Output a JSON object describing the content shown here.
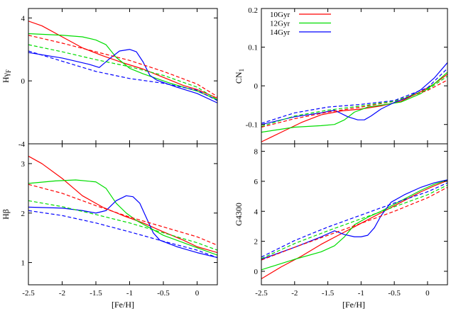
{
  "figure": {
    "shared_xlabel": "[Fe/H]"
  },
  "legend": {
    "entries": [
      {
        "label": "10Gyr",
        "color": "#ff0000"
      },
      {
        "label": "12Gyr",
        "color": "#00dd00"
      },
      {
        "label": "14Gyr",
        "color": "#0000ff"
      }
    ],
    "placement": "top-left of CN1 panel"
  },
  "chart_data": [
    {
      "id": "hgf",
      "type": "line",
      "ylabel": "Hγ_F",
      "xlim": [
        -2.5,
        0.3
      ],
      "ylim": [
        -4,
        4.6
      ],
      "xticks": [
        -2.5,
        -2,
        -1.5,
        -1,
        -0.5,
        0
      ],
      "yticks": [
        -4,
        0,
        4
      ],
      "xticklabels_shown": false,
      "series": [
        {
          "label": "10Gyr",
          "style": "solid",
          "color": "#ff0000",
          "x": [
            -2.5,
            -2.3,
            -2.0,
            -1.7,
            -1.4,
            -1.1,
            -0.8,
            -0.6,
            -0.4,
            -0.2,
            0,
            0.3
          ],
          "y": [
            3.8,
            3.5,
            2.8,
            2.1,
            1.6,
            1.15,
            0.75,
            0.4,
            0.05,
            -0.3,
            -0.55,
            -1.1
          ]
        },
        {
          "label": "12Gyr",
          "style": "solid",
          "color": "#00dd00",
          "x": [
            -2.5,
            -2.0,
            -1.7,
            -1.5,
            -1.35,
            -1.2,
            -1.0,
            -0.8,
            -0.6,
            -0.4,
            -0.2,
            0,
            0.3
          ],
          "y": [
            3.0,
            2.9,
            2.8,
            2.6,
            2.3,
            1.5,
            0.8,
            0.45,
            0.15,
            -0.15,
            -0.4,
            -0.65,
            -1.2
          ]
        },
        {
          "label": "14Gyr",
          "style": "solid",
          "color": "#0000ff",
          "x": [
            -2.5,
            -2.0,
            -1.6,
            -1.45,
            -1.3,
            -1.15,
            -1.0,
            -0.9,
            -0.8,
            -0.7,
            -0.6,
            -0.5,
            -0.3,
            0,
            0.3
          ],
          "y": [
            1.8,
            1.45,
            1.05,
            0.85,
            1.4,
            1.9,
            2.0,
            1.85,
            1.2,
            0.35,
            0.05,
            -0.1,
            -0.4,
            -0.8,
            -1.4
          ]
        },
        {
          "label": "10Gyr",
          "style": "dashed",
          "color": "#ff0000",
          "x": [
            -2.5,
            -2.0,
            -1.5,
            -1.0,
            -0.5,
            0,
            0.3
          ],
          "y": [
            2.9,
            2.4,
            1.85,
            1.3,
            0.6,
            -0.2,
            -1.0
          ]
        },
        {
          "label": "12Gyr",
          "style": "dashed",
          "color": "#00dd00",
          "x": [
            -2.5,
            -2.0,
            -1.5,
            -1.0,
            -0.5,
            0,
            0.3
          ],
          "y": [
            2.3,
            1.85,
            1.35,
            0.9,
            0.35,
            -0.4,
            -1.2
          ]
        },
        {
          "label": "14Gyr",
          "style": "dashed",
          "color": "#0000ff",
          "x": [
            -2.5,
            -2.0,
            -1.5,
            -1.0,
            -0.5,
            0,
            0.3
          ],
          "y": [
            1.9,
            1.25,
            0.6,
            0.15,
            -0.15,
            -0.6,
            -1.25
          ]
        }
      ]
    },
    {
      "id": "cn1",
      "type": "line",
      "ylabel": "CN_1",
      "xlim": [
        -2.5,
        0.3
      ],
      "ylim": [
        -0.15,
        0.2
      ],
      "xticks": [
        -2.5,
        -2,
        -1.5,
        -1,
        -0.5,
        0
      ],
      "yticks": [
        -0.1,
        0,
        0.1,
        0.2
      ],
      "xticklabels_shown": false,
      "series": [
        {
          "label": "10Gyr",
          "style": "solid",
          "color": "#ff0000",
          "x": [
            -2.5,
            -2.2,
            -1.9,
            -1.6,
            -1.3,
            -1.0,
            -0.7,
            -0.4,
            -0.1,
            0.1,
            0.3
          ],
          "y": [
            -0.145,
            -0.12,
            -0.095,
            -0.075,
            -0.065,
            -0.06,
            -0.052,
            -0.04,
            -0.015,
            0.005,
            0.03
          ]
        },
        {
          "label": "12Gyr",
          "style": "solid",
          "color": "#00dd00",
          "x": [
            -2.5,
            -2.0,
            -1.6,
            -1.4,
            -1.25,
            -1.1,
            -0.9,
            -0.7,
            -0.4,
            -0.1,
            0.1,
            0.3
          ],
          "y": [
            -0.12,
            -0.107,
            -0.103,
            -0.1,
            -0.088,
            -0.068,
            -0.055,
            -0.05,
            -0.042,
            -0.02,
            0.005,
            0.035
          ]
        },
        {
          "label": "14Gyr",
          "style": "solid",
          "color": "#0000ff",
          "x": [
            -2.5,
            -2.0,
            -1.6,
            -1.4,
            -1.2,
            -1.05,
            -0.95,
            -0.85,
            -0.7,
            -0.5,
            -0.3,
            -0.1,
            0.1,
            0.3
          ],
          "y": [
            -0.1,
            -0.08,
            -0.07,
            -0.063,
            -0.08,
            -0.088,
            -0.088,
            -0.078,
            -0.06,
            -0.043,
            -0.03,
            -0.01,
            0.02,
            0.06
          ]
        },
        {
          "label": "10Gyr",
          "style": "dashed",
          "color": "#ff0000",
          "x": [
            -2.5,
            -2.0,
            -1.5,
            -1.0,
            -0.5,
            0,
            0.3
          ],
          "y": [
            -0.107,
            -0.085,
            -0.068,
            -0.055,
            -0.04,
            -0.012,
            0.015
          ]
        },
        {
          "label": "12Gyr",
          "style": "dashed",
          "color": "#00dd00",
          "x": [
            -2.5,
            -2.0,
            -1.5,
            -1.0,
            -0.5,
            0,
            0.3
          ],
          "y": [
            -0.105,
            -0.078,
            -0.063,
            -0.052,
            -0.04,
            -0.01,
            0.025
          ]
        },
        {
          "label": "14Gyr",
          "style": "dashed",
          "color": "#0000ff",
          "x": [
            -2.5,
            -2.0,
            -1.5,
            -1.0,
            -0.5,
            0,
            0.3
          ],
          "y": [
            -0.097,
            -0.07,
            -0.055,
            -0.048,
            -0.038,
            -0.005,
            0.045
          ]
        }
      ]
    },
    {
      "id": "hb",
      "type": "line",
      "ylabel": "Hβ",
      "xlim": [
        -2.5,
        0.3
      ],
      "ylim": [
        0.55,
        3.4
      ],
      "xticks": [
        -2.5,
        -2,
        -1.5,
        -1,
        -0.5,
        0
      ],
      "yticks": [
        1,
        2,
        3
      ],
      "xticklabels": [
        "-2.5",
        "-2",
        "-1.5",
        "-1",
        "-0.5",
        "0"
      ],
      "series": [
        {
          "label": "10Gyr",
          "style": "solid",
          "color": "#ff0000",
          "x": [
            -2.5,
            -2.3,
            -2.0,
            -1.7,
            -1.4,
            -1.1,
            -0.8,
            -0.5,
            -0.2,
            0,
            0.3
          ],
          "y": [
            3.15,
            3.0,
            2.7,
            2.35,
            2.12,
            1.95,
            1.8,
            1.62,
            1.45,
            1.32,
            1.2
          ]
        },
        {
          "label": "12Gyr",
          "style": "solid",
          "color": "#00dd00",
          "x": [
            -2.5,
            -2.1,
            -1.8,
            -1.5,
            -1.35,
            -1.2,
            -1.05,
            -0.9,
            -0.7,
            -0.5,
            -0.2,
            0,
            0.3
          ],
          "y": [
            2.6,
            2.65,
            2.67,
            2.63,
            2.5,
            2.2,
            2.0,
            1.85,
            1.7,
            1.55,
            1.4,
            1.3,
            1.15
          ]
        },
        {
          "label": "14Gyr",
          "style": "solid",
          "color": "#0000ff",
          "x": [
            -2.5,
            -2.0,
            -1.7,
            -1.5,
            -1.35,
            -1.2,
            -1.05,
            -0.95,
            -0.85,
            -0.75,
            -0.65,
            -0.55,
            -0.3,
            0,
            0.3
          ],
          "y": [
            2.12,
            2.1,
            2.05,
            2.0,
            2.05,
            2.25,
            2.35,
            2.33,
            2.2,
            1.9,
            1.6,
            1.45,
            1.32,
            1.2,
            1.1
          ]
        },
        {
          "label": "10Gyr",
          "style": "dashed",
          "color": "#ff0000",
          "x": [
            -2.5,
            -2.0,
            -1.5,
            -1.0,
            -0.5,
            0,
            0.3
          ],
          "y": [
            2.58,
            2.4,
            2.15,
            1.92,
            1.72,
            1.52,
            1.35
          ]
        },
        {
          "label": "12Gyr",
          "style": "dashed",
          "color": "#00dd00",
          "x": [
            -2.5,
            -2.0,
            -1.5,
            -1.0,
            -0.5,
            0,
            0.3
          ],
          "y": [
            2.25,
            2.13,
            1.97,
            1.8,
            1.6,
            1.4,
            1.25
          ]
        },
        {
          "label": "14Gyr",
          "style": "dashed",
          "color": "#0000ff",
          "x": [
            -2.5,
            -2.0,
            -1.5,
            -1.0,
            -0.5,
            0,
            0.3
          ],
          "y": [
            2.05,
            1.95,
            1.8,
            1.62,
            1.43,
            1.25,
            1.1
          ]
        }
      ]
    },
    {
      "id": "g4300",
      "type": "line",
      "ylabel": "G4300",
      "xlim": [
        -2.5,
        0.3
      ],
      "ylim": [
        -0.9,
        8.5
      ],
      "xticks": [
        -2.5,
        -2,
        -1.5,
        -1,
        -0.5,
        0
      ],
      "yticks": [
        0,
        2,
        4,
        6,
        8
      ],
      "xticklabels": [
        "-2.5",
        "-2",
        "-1.5",
        "-1",
        "-0.5",
        "0"
      ],
      "series": [
        {
          "label": "10Gyr",
          "style": "solid",
          "color": "#ff0000",
          "x": [
            -2.5,
            -2.2,
            -1.9,
            -1.6,
            -1.3,
            -1.0,
            -0.7,
            -0.4,
            -0.1,
            0.1,
            0.3
          ],
          "y": [
            -0.5,
            0.3,
            1.0,
            1.8,
            2.5,
            3.2,
            3.9,
            4.6,
            5.3,
            5.7,
            6.05
          ]
        },
        {
          "label": "12Gyr",
          "style": "solid",
          "color": "#00dd00",
          "x": [
            -2.5,
            -2.0,
            -1.6,
            -1.4,
            -1.25,
            -1.1,
            -0.9,
            -0.7,
            -0.4,
            -0.1,
            0.1,
            0.3
          ],
          "y": [
            0.1,
            0.8,
            1.3,
            1.7,
            2.3,
            3.1,
            3.6,
            4.0,
            4.7,
            5.4,
            5.8,
            6.1
          ]
        },
        {
          "label": "14Gyr",
          "style": "solid",
          "color": "#0000ff",
          "x": [
            -2.5,
            -2.0,
            -1.6,
            -1.4,
            -1.25,
            -1.1,
            -1.0,
            -0.9,
            -0.8,
            -0.7,
            -0.55,
            -0.35,
            -0.1,
            0.1,
            0.3
          ],
          "y": [
            0.8,
            1.6,
            2.3,
            2.7,
            2.45,
            2.3,
            2.3,
            2.4,
            2.9,
            3.7,
            4.6,
            5.1,
            5.6,
            5.9,
            6.1
          ]
        },
        {
          "label": "10Gyr",
          "style": "dashed",
          "color": "#ff0000",
          "x": [
            -2.5,
            -2.0,
            -1.5,
            -1.0,
            -0.5,
            0,
            0.3
          ],
          "y": [
            0.75,
            1.6,
            2.4,
            3.2,
            4.0,
            4.9,
            5.6
          ]
        },
        {
          "label": "12Gyr",
          "style": "dashed",
          "color": "#00dd00",
          "x": [
            -2.5,
            -2.0,
            -1.5,
            -1.0,
            -0.5,
            0,
            0.3
          ],
          "y": [
            0.85,
            1.85,
            2.7,
            3.5,
            4.3,
            5.1,
            5.75
          ]
        },
        {
          "label": "14Gyr",
          "style": "dashed",
          "color": "#0000ff",
          "x": [
            -2.5,
            -2.0,
            -1.5,
            -1.0,
            -0.5,
            0,
            0.3
          ],
          "y": [
            0.95,
            2.05,
            2.95,
            3.75,
            4.55,
            5.3,
            5.9
          ]
        }
      ]
    }
  ]
}
